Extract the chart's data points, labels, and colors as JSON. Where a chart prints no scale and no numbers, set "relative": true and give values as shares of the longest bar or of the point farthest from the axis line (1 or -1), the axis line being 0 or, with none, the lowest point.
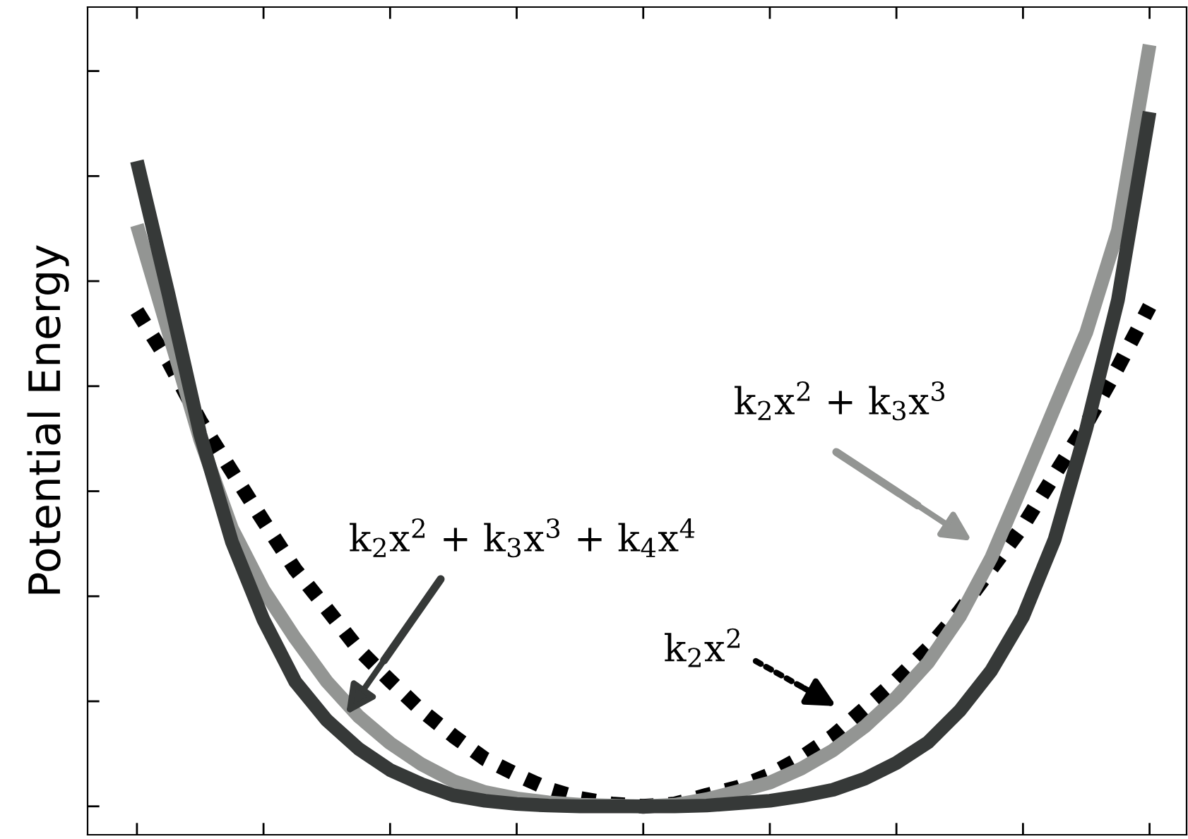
{
  "chart_data": {
    "type": "line",
    "relative": true,
    "ylabel": "Potential Energy",
    "grid": false,
    "tick_labels": "y",
    "categories": [
      null,
      null,
      null,
      null,
      null,
      null,
      null,
      null,
      null,
      null,
      null,
      null,
      null,
      null,
      null,
      null,
      null,
      null,
      null,
      null,
      null,
      null,
      null,
      null,
      null,
      null,
      null,
      null,
      null,
      null,
      null,
      null,
      null
    ],
    "series": [
      {
        "color": "#000000",
        "line_style": "dotted",
        "values": [
          0.663,
          0.599,
          0.524,
          0.46,
          0.397,
          0.336,
          0.286,
          0.235,
          0.195,
          0.157,
          0.125,
          0.096,
          0.076,
          0.058,
          0.046,
          0.039,
          0.036,
          0.039,
          0.05,
          0.06,
          0.076,
          0.098,
          0.125,
          0.16,
          0.196,
          0.236,
          0.283,
          0.337,
          0.391,
          0.456,
          0.52,
          0.592,
          0.669
        ]
      },
      {
        "color": "#939593",
        "line_style": "solid",
        "values": [
          0.772,
          0.636,
          0.5,
          0.388,
          0.31,
          0.249,
          0.194,
          0.15,
          0.116,
          0.089,
          0.068,
          0.054,
          0.046,
          0.041,
          0.038,
          0.037,
          0.036,
          0.038,
          0.045,
          0.055,
          0.066,
          0.084,
          0.107,
          0.137,
          0.174,
          0.218,
          0.276,
          0.351,
          0.445,
          0.541,
          0.636,
          0.765,
          1
        ]
      },
      {
        "color": "#363938",
        "line_style": "solid",
        "values": [
          0.853,
          0.684,
          0.507,
          0.371,
          0.272,
          0.194,
          0.145,
          0.109,
          0.082,
          0.064,
          0.05,
          0.043,
          0.039,
          0.037,
          0.036,
          0.036,
          0.036,
          0.036,
          0.037,
          0.04,
          0.043,
          0.049,
          0.057,
          0.071,
          0.091,
          0.117,
          0.157,
          0.208,
          0.276,
          0.374,
          0.514,
          0.677,
          0.915
        ]
      }
    ],
    "annotations": [
      "k$_{2}$x$^{2}$ + k$_{3}$x$^{3}$ + k$_{4}$x$^{4}$",
      "k$_{2}$x$^{2}$ + k$_{3}$x$^{3}$",
      "k$_{2}$x$^{2}$"
    ]
  }
}
